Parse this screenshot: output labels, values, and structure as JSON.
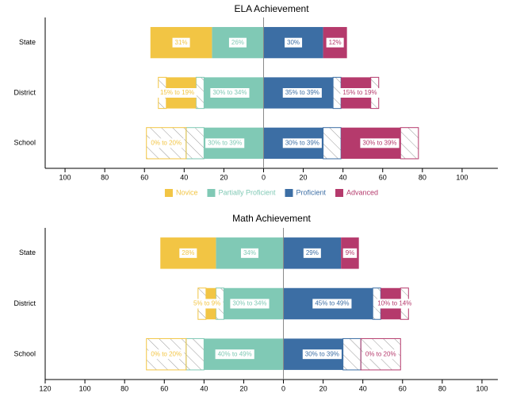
{
  "chart_data": [
    {
      "type": "diverging-bar",
      "title": "ELA Achievement",
      "categories": [
        "State",
        "District",
        "School"
      ],
      "series": [
        {
          "name": "Novice",
          "color": "#f2c544",
          "values": [
            31,
            [
              15,
              19
            ],
            [
              0,
              20
            ]
          ],
          "value_labels": [
            "31%",
            "15% to 19%",
            "0% to 20%"
          ]
        },
        {
          "name": "Partially Proficient",
          "color": "#80c9b5",
          "values": [
            26,
            [
              30,
              34
            ],
            [
              30,
              39
            ]
          ],
          "value_labels": [
            "26%",
            "30% to 34%",
            "30% to 39%"
          ]
        },
        {
          "name": "Proficient",
          "color": "#3c6ea4",
          "values": [
            30,
            [
              35,
              39
            ],
            [
              30,
              39
            ]
          ],
          "value_labels": [
            "30%",
            "35% to 39%",
            "30% to 39%"
          ]
        },
        {
          "name": "Advanced",
          "color": "#b53a6c",
          "values": [
            12,
            [
              15,
              19
            ],
            [
              30,
              39
            ]
          ],
          "value_labels": [
            "12%",
            "15% to 19%",
            "30% to 39%"
          ]
        }
      ],
      "xlim": [
        -110,
        118
      ],
      "xticks": [
        {
          "value": -100,
          "label": "100"
        },
        {
          "value": -80,
          "label": "80"
        },
        {
          "value": -60,
          "label": "60"
        },
        {
          "value": -40,
          "label": "40"
        },
        {
          "value": -20,
          "label": "20"
        },
        0,
        20,
        40,
        60,
        80,
        100
      ],
      "legend": true
    },
    {
      "type": "diverging-bar",
      "title": "Math Achievement",
      "categories": [
        "State",
        "District",
        "School"
      ],
      "series": [
        {
          "name": "Novice",
          "color": "#f2c544",
          "values": [
            28,
            [
              5,
              9
            ],
            [
              0,
              20
            ]
          ],
          "value_labels": [
            "28%",
            "5% to 9%",
            "0% to 20%"
          ]
        },
        {
          "name": "Partially Proficient",
          "color": "#80c9b5",
          "values": [
            34,
            [
              30,
              34
            ],
            [
              40,
              49
            ]
          ],
          "value_labels": [
            "34%",
            "30% to 34%",
            "40% to 49%"
          ]
        },
        {
          "name": "Proficient",
          "color": "#3c6ea4",
          "values": [
            29,
            [
              45,
              49
            ],
            [
              30,
              39
            ]
          ],
          "value_labels": [
            "29%",
            "45% to 49%",
            "30% to 39%"
          ]
        },
        {
          "name": "Advanced",
          "color": "#b53a6c",
          "values": [
            9,
            [
              10,
              14
            ],
            [
              0,
              20
            ]
          ],
          "value_labels": [
            "9%",
            "10% to 14%",
            "0% to 20%"
          ]
        }
      ],
      "xlim": [
        -120,
        108
      ],
      "xticks": [
        {
          "value": -120,
          "label": "120"
        },
        {
          "value": -100,
          "label": "100"
        },
        {
          "value": -80,
          "label": "80"
        },
        {
          "value": -60,
          "label": "60"
        },
        {
          "value": -40,
          "label": "40"
        },
        {
          "value": -20,
          "label": "20"
        },
        0,
        20,
        40,
        60,
        80,
        100
      ],
      "legend": false
    }
  ]
}
